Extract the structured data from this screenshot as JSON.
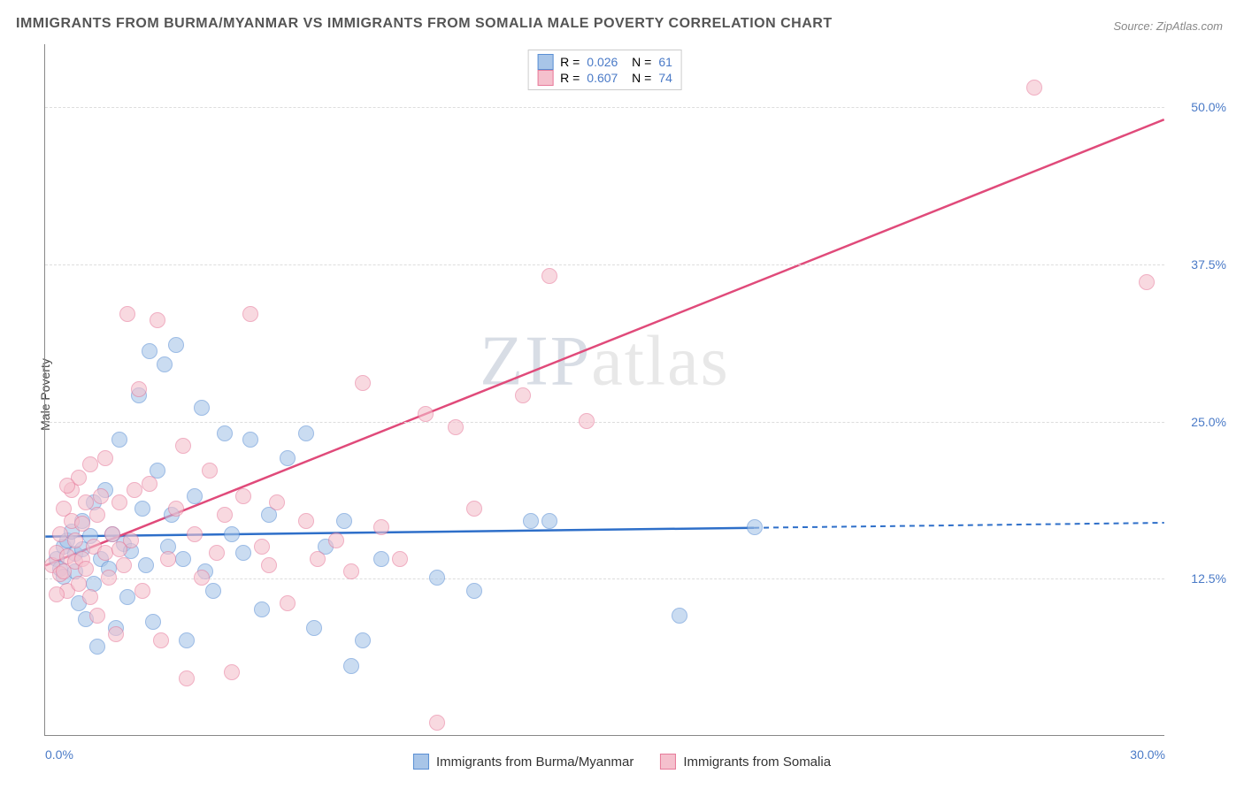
{
  "title": "IMMIGRANTS FROM BURMA/MYANMAR VS IMMIGRANTS FROM SOMALIA MALE POVERTY CORRELATION CHART",
  "source": "Source: ZipAtlas.com",
  "ylabel": "Male Poverty",
  "watermark_a": "ZIP",
  "watermark_b": "atlas",
  "chart": {
    "type": "scatter",
    "xlim": [
      0,
      30
    ],
    "ylim": [
      0,
      55
    ],
    "xticks": [
      {
        "v": 0,
        "label": "0.0%"
      },
      {
        "v": 30,
        "label": "30.0%"
      }
    ],
    "yticks": [
      {
        "v": 12.5,
        "label": "12.5%"
      },
      {
        "v": 25.0,
        "label": "25.0%"
      },
      {
        "v": 37.5,
        "label": "37.5%"
      },
      {
        "v": 50.0,
        "label": "50.0%"
      }
    ],
    "background_color": "#ffffff",
    "grid_color": "#dddddd",
    "series": [
      {
        "name": "Immigrants from Burma/Myanmar",
        "fill": "#a8c5e8",
        "stroke": "#5a8fd4",
        "line_color": "#2e6fc9",
        "R": "0.026",
        "N": "61",
        "trend": {
          "x1": 0,
          "y1": 15.8,
          "x2": 19,
          "y2": 16.5,
          "x2_ext": 30,
          "y2_ext": 16.9
        },
        "points": [
          [
            0.3,
            14.0
          ],
          [
            0.4,
            13.2
          ],
          [
            0.5,
            15.0
          ],
          [
            0.5,
            12.6
          ],
          [
            0.6,
            15.5
          ],
          [
            0.7,
            16.2
          ],
          [
            0.8,
            14.4
          ],
          [
            0.8,
            13.0
          ],
          [
            0.9,
            10.5
          ],
          [
            1.0,
            17.0
          ],
          [
            1.0,
            14.8
          ],
          [
            1.1,
            9.2
          ],
          [
            1.2,
            15.8
          ],
          [
            1.3,
            18.5
          ],
          [
            1.3,
            12.0
          ],
          [
            1.4,
            7.0
          ],
          [
            1.5,
            14.0
          ],
          [
            1.6,
            19.5
          ],
          [
            1.7,
            13.2
          ],
          [
            1.8,
            16.0
          ],
          [
            1.9,
            8.5
          ],
          [
            2.0,
            23.5
          ],
          [
            2.1,
            15.2
          ],
          [
            2.2,
            11.0
          ],
          [
            2.3,
            14.6
          ],
          [
            2.5,
            27.0
          ],
          [
            2.6,
            18.0
          ],
          [
            2.7,
            13.5
          ],
          [
            2.8,
            30.5
          ],
          [
            2.9,
            9.0
          ],
          [
            3.0,
            21.0
          ],
          [
            3.2,
            29.5
          ],
          [
            3.3,
            15.0
          ],
          [
            3.4,
            17.5
          ],
          [
            3.5,
            31.0
          ],
          [
            3.7,
            14.0
          ],
          [
            3.8,
            7.5
          ],
          [
            4.0,
            19.0
          ],
          [
            4.2,
            26.0
          ],
          [
            4.3,
            13.0
          ],
          [
            4.5,
            11.5
          ],
          [
            4.8,
            24.0
          ],
          [
            5.0,
            16.0
          ],
          [
            5.3,
            14.5
          ],
          [
            5.5,
            23.5
          ],
          [
            5.8,
            10.0
          ],
          [
            6.0,
            17.5
          ],
          [
            6.5,
            22.0
          ],
          [
            7.0,
            24.0
          ],
          [
            7.2,
            8.5
          ],
          [
            7.5,
            15.0
          ],
          [
            8.0,
            17.0
          ],
          [
            8.2,
            5.5
          ],
          [
            8.5,
            7.5
          ],
          [
            9.0,
            14.0
          ],
          [
            10.5,
            12.5
          ],
          [
            11.5,
            11.5
          ],
          [
            13.0,
            17.0
          ],
          [
            17.0,
            9.5
          ],
          [
            13.5,
            17.0
          ],
          [
            19.0,
            16.5
          ]
        ]
      },
      {
        "name": "Immigrants from Somalia",
        "fill": "#f5c0cd",
        "stroke": "#e77a9a",
        "line_color": "#e04a7a",
        "R": "0.607",
        "N": "74",
        "trend": {
          "x1": 0,
          "y1": 13.5,
          "x2": 30,
          "y2": 49.0,
          "x2_ext": 30,
          "y2_ext": 49.0
        },
        "points": [
          [
            0.2,
            13.5
          ],
          [
            0.3,
            14.5
          ],
          [
            0.4,
            12.8
          ],
          [
            0.4,
            16.0
          ],
          [
            0.5,
            13.0
          ],
          [
            0.5,
            18.0
          ],
          [
            0.6,
            14.2
          ],
          [
            0.6,
            11.5
          ],
          [
            0.7,
            17.0
          ],
          [
            0.7,
            19.5
          ],
          [
            0.8,
            13.8
          ],
          [
            0.8,
            15.5
          ],
          [
            0.9,
            12.0
          ],
          [
            0.9,
            20.5
          ],
          [
            1.0,
            14.0
          ],
          [
            1.0,
            16.8
          ],
          [
            1.1,
            18.5
          ],
          [
            1.1,
            13.2
          ],
          [
            1.2,
            21.5
          ],
          [
            1.2,
            11.0
          ],
          [
            1.3,
            15.0
          ],
          [
            1.4,
            17.5
          ],
          [
            1.4,
            9.5
          ],
          [
            1.5,
            19.0
          ],
          [
            1.6,
            14.5
          ],
          [
            1.7,
            12.5
          ],
          [
            1.8,
            16.0
          ],
          [
            1.9,
            8.0
          ],
          [
            2.0,
            18.5
          ],
          [
            2.1,
            13.5
          ],
          [
            2.2,
            33.5
          ],
          [
            2.3,
            15.5
          ],
          [
            2.5,
            27.5
          ],
          [
            2.6,
            11.5
          ],
          [
            2.8,
            20.0
          ],
          [
            3.0,
            33.0
          ],
          [
            3.1,
            7.5
          ],
          [
            3.3,
            14.0
          ],
          [
            3.5,
            18.0
          ],
          [
            3.7,
            23.0
          ],
          [
            3.8,
            4.5
          ],
          [
            4.0,
            16.0
          ],
          [
            4.2,
            12.5
          ],
          [
            4.4,
            21.0
          ],
          [
            4.6,
            14.5
          ],
          [
            4.8,
            17.5
          ],
          [
            5.0,
            5.0
          ],
          [
            5.3,
            19.0
          ],
          [
            5.5,
            33.5
          ],
          [
            5.8,
            15.0
          ],
          [
            6.0,
            13.5
          ],
          [
            6.2,
            18.5
          ],
          [
            6.5,
            10.5
          ],
          [
            7.0,
            17.0
          ],
          [
            7.3,
            14.0
          ],
          [
            7.8,
            15.5
          ],
          [
            8.2,
            13.0
          ],
          [
            8.5,
            28.0
          ],
          [
            9.0,
            16.5
          ],
          [
            9.5,
            14.0
          ],
          [
            10.2,
            25.5
          ],
          [
            10.5,
            1.0
          ],
          [
            11.0,
            24.5
          ],
          [
            11.5,
            18.0
          ],
          [
            12.8,
            27.0
          ],
          [
            13.5,
            36.5
          ],
          [
            14.5,
            25.0
          ],
          [
            26.5,
            51.5
          ],
          [
            29.5,
            36.0
          ],
          [
            2.4,
            19.5
          ],
          [
            1.6,
            22.0
          ],
          [
            0.3,
            11.2
          ],
          [
            0.6,
            19.8
          ],
          [
            2.0,
            14.8
          ]
        ]
      }
    ]
  },
  "legend_top_labels": {
    "R": "R =",
    "N": "N ="
  },
  "legend_bottom": [
    {
      "label": "Immigrants from Burma/Myanmar",
      "series": 0
    },
    {
      "label": "Immigrants from Somalia",
      "series": 1
    }
  ]
}
